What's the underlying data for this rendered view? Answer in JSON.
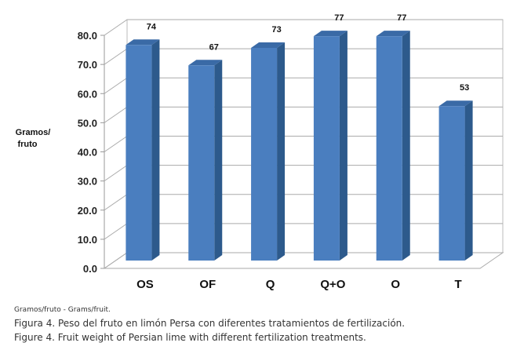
{
  "chart_data": {
    "type": "bar",
    "style": "3d-column",
    "categories": [
      "OS",
      "OF",
      "Q",
      "Q+O",
      "O",
      "T"
    ],
    "values": [
      74,
      67,
      73,
      77,
      77,
      53
    ],
    "data_labels": [
      "74",
      "67",
      "73",
      "77",
      "77",
      "53"
    ],
    "ylabel": "Gramos/\nfruto",
    "ylabel_lines": [
      "Gramos/",
      "fruto"
    ],
    "yticks": [
      "0.0",
      "10.0",
      "20.0",
      "30.0",
      "40.0",
      "50.0",
      "60.0",
      "70.0",
      "80.0"
    ],
    "ylim": [
      0,
      80
    ],
    "grid": true,
    "bar_color": "#4a7ebf",
    "bar_side_color": "#2d5a8c",
    "bar_top_color": "#3a6aa6"
  },
  "caption": {
    "note": "Gramos/fruto - Grams/fruit.",
    "es": "Figura 4. Peso del fruto en limón Persa con diferentes tratamientos de fertilización.",
    "en": "Figure 4. Fruit weight of Persian lime with different fertilization treatments."
  }
}
